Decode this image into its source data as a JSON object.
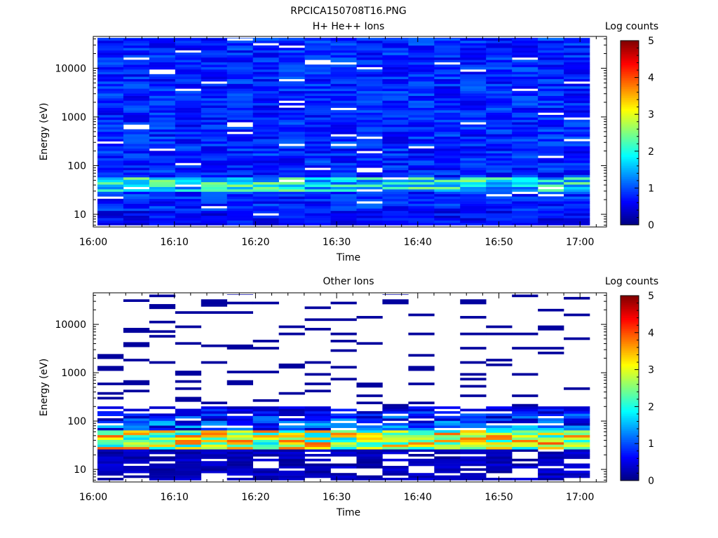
{
  "figure": {
    "filename": "RPCICA150708T16.PNG"
  },
  "chart_data": [
    {
      "type": "heatmap",
      "title": "H+ He++ Ions",
      "xlabel": "Time",
      "ylabel": "Energy (eV)",
      "y_scale": "log",
      "ylim": [
        5.5,
        45000
      ],
      "x_ticks": [
        "16:00",
        "16:10",
        "16:20",
        "16:30",
        "16:40",
        "16:50",
        "17:00"
      ],
      "y_ticks": [
        "10",
        "100",
        "1000",
        "10000"
      ],
      "time_bins": 19,
      "time_range": [
        "16:00",
        "17:01"
      ],
      "colorbar": {
        "label": "Log counts",
        "range": [
          0,
          5
        ],
        "ticks": [
          "0",
          "1",
          "2",
          "3",
          "4",
          "5"
        ]
      },
      "dominant_level": 0.8,
      "low_energy_peak": {
        "energy_range": [
          30,
          60
        ],
        "max_level": 2.6
      }
    },
    {
      "type": "heatmap",
      "title": "Other Ions",
      "xlabel": "Time",
      "ylabel": "Energy (eV)",
      "y_scale": "log",
      "ylim": [
        5.5,
        45000
      ],
      "x_ticks": [
        "16:00",
        "16:10",
        "16:20",
        "16:30",
        "16:40",
        "16:50",
        "17:00"
      ],
      "y_ticks": [
        "10",
        "100",
        "1000",
        "10000"
      ],
      "time_bins": 19,
      "time_range": [
        "16:00",
        "17:01"
      ],
      "colorbar": {
        "label": "Log counts",
        "range": [
          0,
          5
        ],
        "ticks": [
          "0",
          "1",
          "2",
          "3",
          "4",
          "5"
        ]
      },
      "peak_band": {
        "energy_range": [
          25,
          60
        ],
        "max_level": 4.0
      },
      "sparse_counts_above_eV": 200
    }
  ]
}
